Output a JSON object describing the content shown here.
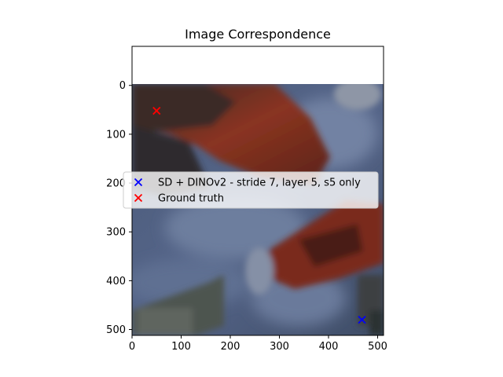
{
  "chart_data": {
    "type": "scatter",
    "title": "Image Correspondence",
    "xlabel": "",
    "ylabel": "",
    "xlim": [
      0,
      512
    ],
    "ylim": [
      512,
      -80
    ],
    "y_inverted": true,
    "xticks": [
      0,
      100,
      200,
      300,
      400,
      500
    ],
    "yticks": [
      0,
      100,
      200,
      300,
      400,
      500
    ],
    "grid": false,
    "legend_position": "center-left",
    "series": [
      {
        "name": "SD + DINOv2 - stride 7, layer 5, s5 only",
        "color": "#0000ff",
        "marker": "x",
        "points": [
          {
            "x": 468,
            "y": 480
          }
        ]
      },
      {
        "name": "Ground truth",
        "color": "#ff0000",
        "marker": "x",
        "points": [
          {
            "x": 50,
            "y": 52
          }
        ]
      }
    ],
    "background_image": "blurred photo of a red robot arm gripper over a blue-grey patterned surface"
  }
}
